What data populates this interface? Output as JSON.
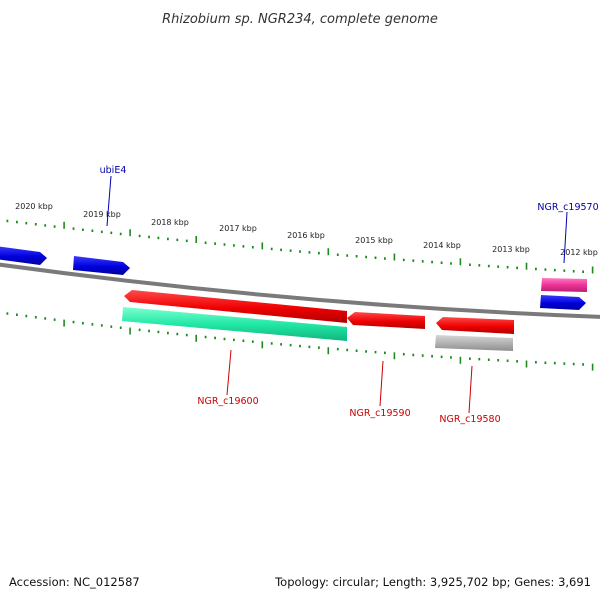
{
  "header": {
    "title": "Rhizobium sp. NGR234, complete genome"
  },
  "footer": {
    "accession": "Accession: NC_012587",
    "topology": "Topology: circular; Length: 3,925,702 bp; Genes: 3,691"
  },
  "scale": {
    "labels": [
      "2020 kbp",
      "2019 kbp",
      "2018 kbp",
      "2017 kbp",
      "2016 kbp",
      "2015 kbp",
      "2014 kbp",
      "2013 kbp",
      "2012 kbp"
    ]
  },
  "genes": {
    "labels": {
      "ubiE4": "ubiE4",
      "NGR_c19570": "NGR_c19570",
      "NGR_c19600": "NGR_c19600",
      "NGR_c19590": "NGR_c19590",
      "NGR_c19580": "NGR_c19580"
    }
  },
  "colors": {
    "backbone": "#7a7a7a",
    "ticks": "#1f8a1f",
    "forward_gene": "#0000ee",
    "reverse_gene": "#ee0000",
    "rna_gene": "#22dd99",
    "pseudo_gene": "#aaaaaa",
    "misc_gene": "#ee3399"
  }
}
